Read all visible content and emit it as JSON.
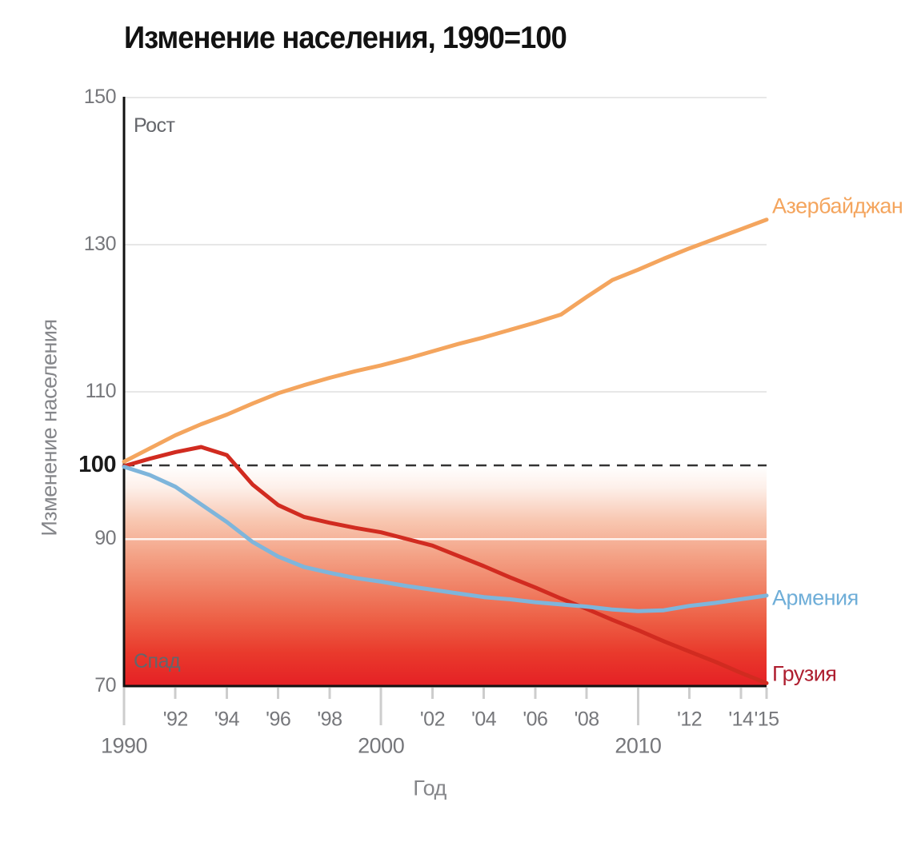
{
  "title": "Изменение населения, 1990=100",
  "annotations": {
    "growth": "Рост",
    "decline": "Спад"
  },
  "chart_data": {
    "type": "line",
    "title": "Изменение населения, 1990=100",
    "xlabel": "Год",
    "ylabel": "Изменение населения",
    "x_range": [
      1990,
      2015
    ],
    "y_range": [
      70,
      150
    ],
    "baseline_value": 100,
    "gridline_values": [
      150,
      130,
      110,
      90
    ],
    "grid": true,
    "legend_position": "right-of-line-ends",
    "y_ticks": [
      {
        "value": 150,
        "label": "150",
        "emphasis": false
      },
      {
        "value": 130,
        "label": "130",
        "emphasis": false
      },
      {
        "value": 110,
        "label": "110",
        "emphasis": false
      },
      {
        "value": 100,
        "label": "100",
        "emphasis": true
      },
      {
        "value": 90,
        "label": "90",
        "emphasis": false
      },
      {
        "value": 70,
        "label": "70",
        "emphasis": false
      }
    ],
    "x_ticks": [
      {
        "year": 1990,
        "label": "1990",
        "major": true
      },
      {
        "year": 1992,
        "label": "'92",
        "major": false
      },
      {
        "year": 1994,
        "label": "'94",
        "major": false
      },
      {
        "year": 1996,
        "label": "'96",
        "major": false
      },
      {
        "year": 1998,
        "label": "'98",
        "major": false
      },
      {
        "year": 2000,
        "label": "2000",
        "major": true
      },
      {
        "year": 2002,
        "label": "'02",
        "major": false
      },
      {
        "year": 2004,
        "label": "'04",
        "major": false
      },
      {
        "year": 2006,
        "label": "'06",
        "major": false
      },
      {
        "year": 2008,
        "label": "'08",
        "major": false
      },
      {
        "year": 2010,
        "label": "2010",
        "major": true
      },
      {
        "year": 2012,
        "label": "'12",
        "major": false
      },
      {
        "year": 2014,
        "label": "'14",
        "major": false
      },
      {
        "year": 2015,
        "label": "'15",
        "major": false
      }
    ],
    "x": [
      1990,
      1991,
      1992,
      1993,
      1994,
      1995,
      1996,
      1997,
      1998,
      1999,
      2000,
      2001,
      2002,
      2003,
      2004,
      2005,
      2006,
      2007,
      2008,
      2009,
      2010,
      2011,
      2012,
      2013,
      2014,
      2015
    ],
    "series": [
      {
        "name": "Азербайджан",
        "color": "#F4A55E",
        "label_color": "#F4A55E",
        "values": [
          100.5,
          102.3,
          104.1,
          105.6,
          106.9,
          108.4,
          109.8,
          110.9,
          111.9,
          112.8,
          113.6,
          114.5,
          115.5,
          116.5,
          117.4,
          118.4,
          119.4,
          120.5,
          122.9,
          125.2,
          126.6,
          128.1,
          129.5,
          130.8,
          132.1,
          133.4
        ]
      },
      {
        "name": "Армения",
        "color": "#7EB5DB",
        "label_color": "#6FAED8",
        "values": [
          99.8,
          98.7,
          97.1,
          94.7,
          92.3,
          89.6,
          87.6,
          86.2,
          85.4,
          84.7,
          84.2,
          83.6,
          83.1,
          82.6,
          82.1,
          81.8,
          81.4,
          81.1,
          80.8,
          80.4,
          80.2,
          80.3,
          80.9,
          81.3,
          81.8,
          82.3
        ]
      },
      {
        "name": "Грузия",
        "color": "#D12B20",
        "label_color": "#AE1E2F",
        "values": [
          99.9,
          100.9,
          101.8,
          102.5,
          101.4,
          97.4,
          94.6,
          93.0,
          92.2,
          91.5,
          90.9,
          90.0,
          89.1,
          87.7,
          86.3,
          84.8,
          83.4,
          81.9,
          80.5,
          79.0,
          77.6,
          76.1,
          74.7,
          73.3,
          71.8,
          70.4
        ]
      }
    ],
    "decline_gradient": [
      {
        "offset": 0.0,
        "color": "#FFFFFF"
      },
      {
        "offset": 0.1,
        "color": "#FDF0EA"
      },
      {
        "offset": 0.25,
        "color": "#F8C7B1"
      },
      {
        "offset": 0.4,
        "color": "#F4A488"
      },
      {
        "offset": 0.55,
        "color": "#F08266"
      },
      {
        "offset": 0.7,
        "color": "#ED5F45"
      },
      {
        "offset": 0.85,
        "color": "#E93A2C"
      },
      {
        "offset": 1.0,
        "color": "#E52025"
      }
    ],
    "colors": {
      "grid": "#E7E7E7",
      "grid_on_fill": "#FFFFFF",
      "baseline": "#333333",
      "axis": "#111111",
      "tick_mark": "#CDCDCD",
      "tick_text": "#76777B",
      "emphasis_text": "#1A1A1A",
      "annotation_text": "#64666B"
    }
  }
}
